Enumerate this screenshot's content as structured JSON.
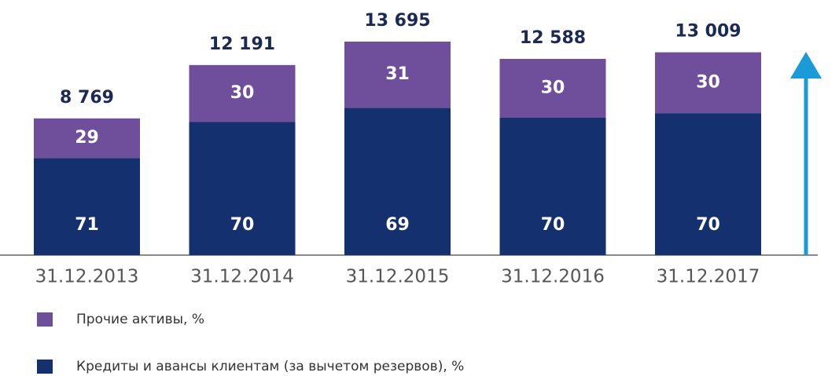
{
  "chart_data": {
    "type": "bar",
    "categories": [
      "31.12.2013",
      "31.12.2014",
      "31.12.2015",
      "31.12.2016",
      "31.12.2017"
    ],
    "totals": [
      8769,
      12191,
      13695,
      12588,
      13009
    ],
    "value_labels": [
      "8 769",
      "12 191",
      "13 695",
      "12 588",
      "13 009"
    ],
    "series": [
      {
        "name": "Прочие активы, %",
        "color": "#6f4e9c",
        "values": [
          29,
          30,
          31,
          30,
          30
        ]
      },
      {
        "name": "Кредиты и авансы клиентам (за вычетом резервов), %",
        "color": "#14306e",
        "values": [
          71,
          70,
          69,
          70,
          70
        ]
      }
    ]
  }
}
